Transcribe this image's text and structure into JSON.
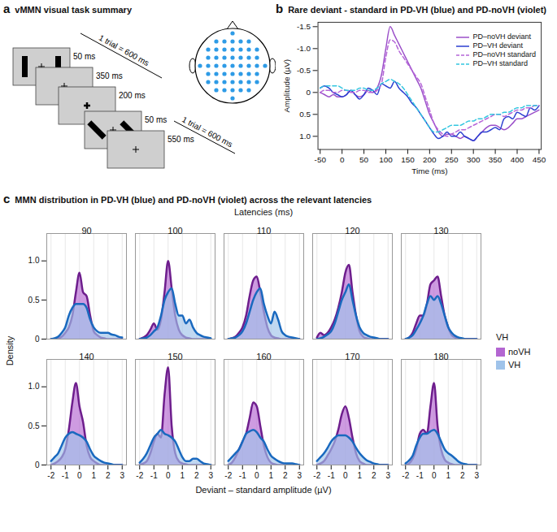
{
  "panel_a": {
    "panel_label": "a",
    "title": "vMMN visual task summary",
    "frames": [
      {
        "duration": "50 ms"
      },
      {
        "duration": "350 ms"
      },
      {
        "duration": "200 ms"
      },
      {
        "duration": "50 ms"
      },
      {
        "duration": "550 ms"
      }
    ],
    "trial_labels": [
      "1 trial = 600 ms",
      "1 trial = 600 ms"
    ]
  },
  "chart_data": [
    {
      "type": "line",
      "panel_label": "b",
      "title": "Rare deviant - standard in PD-VH (blue) and PD-noVH (violet)",
      "xlabel": "Time (ms)",
      "ylabel": "Amplitude (µV)",
      "x": [
        -50,
        -40,
        -30,
        -20,
        -10,
        0,
        10,
        20,
        30,
        40,
        50,
        60,
        70,
        80,
        90,
        100,
        110,
        120,
        130,
        140,
        150,
        160,
        170,
        180,
        190,
        200,
        210,
        220,
        230,
        240,
        250,
        260,
        270,
        280,
        290,
        300,
        310,
        320,
        330,
        340,
        350,
        360,
        370,
        380,
        390,
        400,
        410,
        420,
        430,
        440,
        450
      ],
      "xlim": [
        -55,
        455
      ],
      "xticks": [
        -50,
        0,
        50,
        100,
        150,
        200,
        250,
        300,
        350,
        400,
        450
      ],
      "ylim": [
        1.3,
        -1.6
      ],
      "yticks": [
        -1.5,
        {
          "value": -1,
          "label": "-1.0"
        },
        -0.5,
        0,
        0.5,
        {
          "value": 1,
          "label": "1.0"
        }
      ],
      "legend": "top-right",
      "series": [
        {
          "name": "PD–noVH deviant",
          "color": "#9b4fc9",
          "line_style": "solid",
          "values": [
            0,
            0.05,
            0.1,
            0.05,
            0.1,
            0.1,
            0.05,
            -0.05,
            0.05,
            0.1,
            0.05,
            -0.05,
            0,
            -0.1,
            -0.4,
            -1.0,
            -1.5,
            -1.3,
            -1.1,
            -0.9,
            -0.7,
            -0.5,
            -0.3,
            -0.1,
            0.2,
            0.5,
            0.7,
            0.9,
            1.0,
            0.95,
            0.95,
            1.0,
            1.05,
            1.0,
            1.05,
            1.1,
            1.0,
            0.9,
            0.8,
            0.75,
            0.75,
            0.8,
            0.85,
            0.8,
            0.7,
            0.6,
            0.6,
            0.55,
            0.5,
            0.45,
            0.4
          ]
        },
        {
          "name": "PD–VH deviant",
          "color": "#2b3fd1",
          "line_style": "solid",
          "values": [
            -0.1,
            -0.15,
            -0.1,
            0,
            0.05,
            0.1,
            0.05,
            -0.05,
            0.05,
            0.15,
            0.05,
            -0.1,
            -0.05,
            0.05,
            -0.2,
            -0.15,
            -0.1,
            -0.25,
            -0.1,
            0,
            0.1,
            0.25,
            0.35,
            0.5,
            0.65,
            0.8,
            0.95,
            1.05,
            1.0,
            0.9,
            1.0,
            1.0,
            0.9,
            1.0,
            1.05,
            1.1,
            1.0,
            0.9,
            0.9,
            0.85,
            0.8,
            0.85,
            0.6,
            0.55,
            0.6,
            0.45,
            0.5,
            0.55,
            0.35,
            0.4,
            0.3
          ]
        },
        {
          "name": "PD–noVH standard",
          "color": "#b565d8",
          "line_style": "dashed",
          "values": [
            0,
            -0.05,
            -0.05,
            0,
            0,
            -0.05,
            -0.05,
            0,
            0,
            -0.05,
            -0.05,
            0,
            0,
            -0.05,
            -0.2,
            -0.8,
            -1.2,
            -1.15,
            -0.95,
            -0.8,
            -0.65,
            -0.5,
            -0.35,
            -0.2,
            0.1,
            0.4,
            0.7,
            0.85,
            0.95,
            1.0,
            0.95,
            0.9,
            0.85,
            0.85,
            0.8,
            0.75,
            0.7,
            0.65,
            0.6,
            0.55,
            0.5,
            0.5,
            0.55,
            0.5,
            0.45,
            0.4,
            0.4,
            0.35,
            0.35,
            0.3,
            0.3
          ]
        },
        {
          "name": "PD–VH standard",
          "color": "#33c6e0",
          "line_style": "dashed",
          "values": [
            -0.1,
            -0.15,
            -0.15,
            -0.15,
            -0.15,
            -0.1,
            -0.05,
            -0.05,
            -0.05,
            -0.1,
            -0.1,
            -0.05,
            -0.05,
            -0.1,
            -0.2,
            -0.25,
            -0.3,
            -0.25,
            -0.2,
            -0.1,
            0.05,
            0.2,
            0.35,
            0.5,
            0.65,
            0.8,
            0.9,
            0.9,
            0.85,
            0.8,
            0.75,
            0.75,
            0.75,
            0.7,
            0.65,
            0.65,
            0.6,
            0.6,
            0.55,
            0.5,
            0.5,
            0.5,
            0.45,
            0.45,
            0.4,
            0.35,
            0.35,
            0.3,
            0.3,
            0.3,
            0.3
          ]
        }
      ]
    },
    {
      "type": "area",
      "panel_label": "c",
      "title": "MMN distribution in PD-VH (blue) and PD-noVH (violet) across the relevant latencies",
      "facet_label": "Latencies (ms)",
      "xlabel": "Deviant – standard amplitude (µV)",
      "ylabel": "Density",
      "x": [
        -2,
        -1.75,
        -1.5,
        -1.25,
        -1,
        -0.75,
        -0.5,
        -0.25,
        0,
        0.25,
        0.5,
        0.75,
        1,
        1.25,
        1.5,
        1.75,
        2,
        2.25,
        2.5,
        2.75,
        3
      ],
      "xlim": [
        -2.3,
        3.3
      ],
      "xticks": [
        -2,
        -1,
        0,
        1,
        2,
        3
      ],
      "ylim": [
        0,
        1.35
      ],
      "yticks": [
        0,
        0.5,
        {
          "value": 1,
          "label": "1.0"
        }
      ],
      "grid": true,
      "legend": "right",
      "legend_title": "VH",
      "series": [
        {
          "name": "noVH",
          "color": "#b366d1"
        },
        {
          "name": "VH",
          "color": "#9fc3ea"
        }
      ],
      "panels": [
        {
          "latency": 90,
          "series": [
            {
              "name": "noVH",
              "values": [
                0,
                0,
                0.01,
                0.03,
                0.08,
                0.15,
                0.3,
                0.6,
                0.85,
                0.6,
                0.55,
                0.3,
                0.1,
                0.05,
                0.02,
                0.01,
                0,
                0,
                0,
                0,
                0
              ]
            },
            {
              "name": "VH",
              "values": [
                0,
                0.01,
                0.03,
                0.08,
                0.15,
                0.3,
                0.4,
                0.45,
                0.45,
                0.45,
                0.4,
                0.25,
                0.15,
                0.1,
                0.08,
                0.08,
                0.08,
                0.06,
                0.05,
                0.03,
                0.02
              ]
            }
          ]
        },
        {
          "latency": 100,
          "series": [
            {
              "name": "noVH",
              "values": [
                0,
                0.02,
                0.05,
                0.12,
                0.2,
                0.12,
                0.25,
                0.6,
                1.0,
                0.65,
                0.3,
                0.12,
                0.05,
                0.02,
                0.01,
                0,
                0,
                0,
                0,
                0,
                0
              ]
            },
            {
              "name": "VH",
              "values": [
                0,
                0.01,
                0.02,
                0.05,
                0.1,
                0.15,
                0.3,
                0.5,
                0.6,
                0.65,
                0.45,
                0.3,
                0.3,
                0.2,
                0.25,
                0.15,
                0.08,
                0.05,
                0.03,
                0.02,
                0.01
              ]
            }
          ]
        },
        {
          "latency": 110,
          "series": [
            {
              "name": "noVH",
              "values": [
                0,
                0.01,
                0.03,
                0.08,
                0.15,
                0.3,
                0.55,
                0.75,
                0.8,
                0.6,
                0.35,
                0.15,
                0.05,
                0.02,
                0.01,
                0,
                0,
                0,
                0,
                0,
                0
              ]
            },
            {
              "name": "VH",
              "values": [
                0,
                0.01,
                0.02,
                0.05,
                0.1,
                0.2,
                0.35,
                0.5,
                0.6,
                0.65,
                0.45,
                0.3,
                0.2,
                0.35,
                0.25,
                0.1,
                0.05,
                0.03,
                0.02,
                0.01,
                0
              ]
            }
          ]
        },
        {
          "latency": 120,
          "series": [
            {
              "name": "noVH",
              "values": [
                0.02,
                0.08,
                0.05,
                0.08,
                0.15,
                0.25,
                0.4,
                0.6,
                0.85,
                0.95,
                0.6,
                0.3,
                0.1,
                0.03,
                0.01,
                0,
                0,
                0,
                0,
                0,
                0
              ]
            },
            {
              "name": "VH",
              "values": [
                0,
                0.01,
                0.03,
                0.06,
                0.1,
                0.2,
                0.35,
                0.5,
                0.6,
                0.7,
                0.5,
                0.3,
                0.15,
                0.08,
                0.05,
                0.03,
                0.02,
                0.01,
                0,
                0,
                0
              ]
            }
          ]
        },
        {
          "latency": 130,
          "series": [
            {
              "name": "noVH",
              "values": [
                0,
                0.02,
                0.08,
                0.2,
                0.3,
                0.3,
                0.45,
                0.7,
                0.75,
                0.8,
                0.55,
                0.3,
                0.15,
                0.05,
                0.02,
                0,
                0,
                0,
                0,
                0,
                0
              ]
            },
            {
              "name": "VH",
              "values": [
                0,
                0.02,
                0.05,
                0.12,
                0.2,
                0.3,
                0.45,
                0.55,
                0.5,
                0.55,
                0.45,
                0.3,
                0.15,
                0.08,
                0.04,
                0.02,
                0.01,
                0,
                0,
                0,
                0
              ]
            }
          ]
        },
        {
          "latency": 140,
          "series": [
            {
              "name": "noVH",
              "values": [
                0,
                0.02,
                0.05,
                0.1,
                0.2,
                0.45,
                0.8,
                1.05,
                0.75,
                0.55,
                0.25,
                0.1,
                0.05,
                0.02,
                0,
                0,
                0,
                0,
                0,
                0,
                0
              ]
            },
            {
              "name": "VH",
              "values": [
                0.05,
                0.1,
                0.15,
                0.25,
                0.35,
                0.4,
                0.42,
                0.4,
                0.38,
                0.35,
                0.3,
                0.2,
                0.12,
                0.08,
                0.05,
                0.03,
                0.02,
                0.01,
                0,
                0,
                0
              ]
            }
          ]
        },
        {
          "latency": 150,
          "series": [
            {
              "name": "noVH",
              "values": [
                0,
                0.02,
                0.05,
                0.15,
                0.3,
                0.4,
                0.35,
                0.9,
                1.25,
                0.5,
                0.15,
                0.05,
                0.02,
                0.01,
                0,
                0,
                0,
                0,
                0,
                0,
                0
              ]
            },
            {
              "name": "VH",
              "values": [
                0.03,
                0.08,
                0.15,
                0.25,
                0.35,
                0.4,
                0.45,
                0.4,
                0.38,
                0.35,
                0.3,
                0.2,
                0.1,
                0.05,
                0.05,
                0.08,
                0.08,
                0.05,
                0.02,
                0.01,
                0
              ]
            }
          ]
        },
        {
          "latency": 160,
          "series": [
            {
              "name": "noVH",
              "values": [
                0,
                0.03,
                0.1,
                0.2,
                0.3,
                0.4,
                0.6,
                0.8,
                0.75,
                0.5,
                0.25,
                0.1,
                0.03,
                0.01,
                0,
                0,
                0,
                0,
                0,
                0,
                0
              ]
            },
            {
              "name": "VH",
              "values": [
                0.05,
                0.1,
                0.15,
                0.2,
                0.3,
                0.4,
                0.43,
                0.45,
                0.42,
                0.35,
                0.3,
                0.2,
                0.12,
                0.08,
                0.05,
                0.03,
                0.02,
                0.02,
                0.02,
                0.01,
                0
              ]
            }
          ]
        },
        {
          "latency": 170,
          "series": [
            {
              "name": "noVH",
              "values": [
                0,
                0.02,
                0.05,
                0.12,
                0.2,
                0.3,
                0.45,
                0.65,
                0.75,
                0.6,
                0.35,
                0.15,
                0.05,
                0.02,
                0,
                0,
                0,
                0,
                0,
                0,
                0
              ]
            },
            {
              "name": "VH",
              "values": [
                0.05,
                0.1,
                0.15,
                0.22,
                0.3,
                0.35,
                0.38,
                0.38,
                0.38,
                0.35,
                0.3,
                0.22,
                0.15,
                0.1,
                0.06,
                0.04,
                0.02,
                0.01,
                0,
                0,
                0
              ]
            }
          ]
        },
        {
          "latency": 180,
          "series": [
            {
              "name": "noVH",
              "values": [
                0,
                0.02,
                0.08,
                0.2,
                0.4,
                0.45,
                0.4,
                0.75,
                1.05,
                0.5,
                0.2,
                0.07,
                0.03,
                0.01,
                0,
                0,
                0,
                0,
                0,
                0,
                0
              ]
            },
            {
              "name": "VH",
              "values": [
                0.02,
                0.06,
                0.12,
                0.25,
                0.35,
                0.4,
                0.4,
                0.43,
                0.45,
                0.4,
                0.3,
                0.2,
                0.15,
                0.12,
                0.08,
                0.04,
                0.02,
                0.01,
                0,
                0,
                0
              ]
            }
          ]
        }
      ]
    }
  ]
}
